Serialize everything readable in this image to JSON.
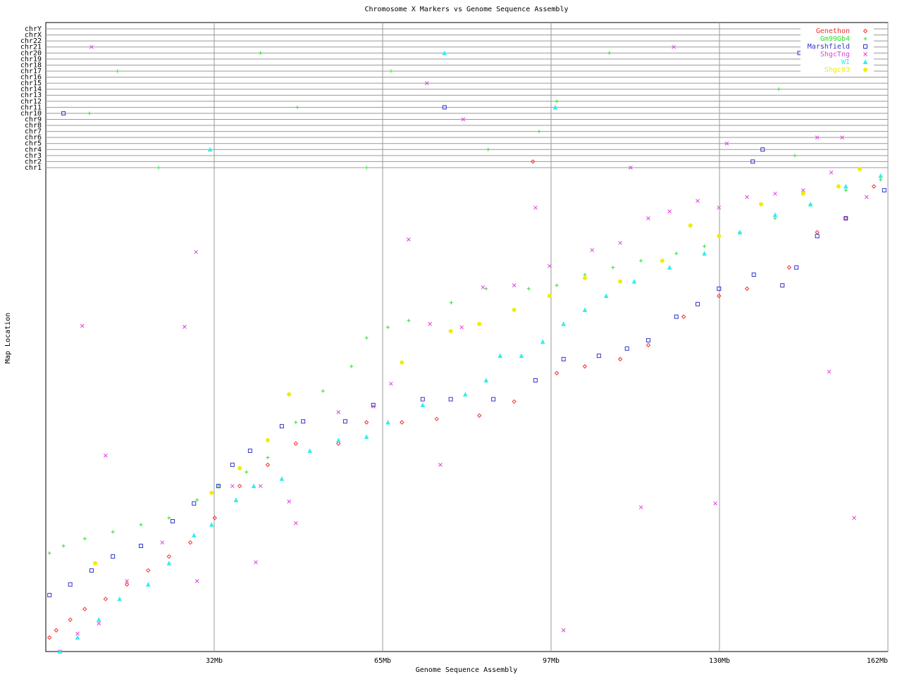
{
  "chart_data": {
    "type": "scatter",
    "title": "Chromosome X Markers vs Genome Sequence Assembly",
    "x_label": "Genome Sequence Assembly",
    "y_label": "Map Location",
    "xlim": [
      0,
      162
    ],
    "ylim": [
      0,
      100
    ],
    "xticks": [
      {
        "value": 32.4,
        "label": "32Mb"
      },
      {
        "value": 64.8,
        "label": "65Mb"
      },
      {
        "value": 97.2,
        "label": "97Mb"
      },
      {
        "value": 129.6,
        "label": "130Mb"
      },
      {
        "value": 162,
        "label": "162Mb"
      }
    ],
    "y_categories": [
      "chr1",
      "chr2",
      "chr3",
      "chr4",
      "chr5",
      "chr6",
      "chr7",
      "chr8",
      "chr9",
      "chr10",
      "chr11",
      "chr12",
      "chr13",
      "chr14",
      "chr15",
      "chr16",
      "chr17",
      "chr18",
      "chr19",
      "chr20",
      "chr21",
      "chr22",
      "chrX",
      "chrY"
    ],
    "grid": true,
    "legend": "top-right",
    "series": [
      {
        "name": "Genethon",
        "color": "#ee3333",
        "marker": "diamond",
        "x": [
          0.7,
          2.0,
          4.7,
          7.5,
          11.5,
          15.6,
          19.7,
          23.7,
          27.8,
          32.5,
          37.3,
          42.7,
          48.1,
          56.3,
          61.7,
          68.5,
          75.2,
          83.4,
          90.1,
          98.3,
          103.7,
          110.5,
          115.9,
          122.7,
          129.5,
          134.9,
          143.0,
          148.4,
          153.9,
          159.3
        ],
        "y": [
          2.9,
          4.4,
          6.6,
          8.8,
          10.9,
          13.9,
          16.8,
          19.7,
          22.6,
          27.7,
          34.3,
          38.7,
          43.1,
          43.1,
          47.5,
          47.5,
          48.2,
          48.9,
          51.8,
          57.7,
          59.1,
          60.6,
          63.5,
          69.4,
          73.7,
          75.2,
          79.6,
          86.9,
          89.8,
          96.4
        ],
        "chr_x": [
          93.7
        ],
        "chr": [
          "chr2"
        ]
      },
      {
        "name": "Gm99Gb4",
        "color": "#33dd33",
        "marker": "plus",
        "x": [
          0.7,
          3.4,
          7.5,
          12.9,
          18.3,
          23.7,
          29.1,
          33.2,
          38.6,
          42.7,
          48.1,
          53.3,
          58.8,
          61.7,
          65.8,
          69.8,
          78.0,
          84.7,
          92.9,
          98.3,
          103.7,
          109.1,
          114.5,
          121.3,
          126.7,
          133.5,
          140.3,
          147.1,
          153.9,
          160.6
        ],
        "y": [
          20.4,
          21.9,
          23.4,
          24.8,
          26.3,
          27.7,
          31.4,
          34.3,
          37.2,
          40.2,
          47.5,
          54.0,
          59.1,
          65.0,
          67.2,
          68.6,
          72.3,
          75.2,
          75.2,
          75.9,
          78.1,
          79.6,
          81.0,
          82.5,
          84.0,
          86.9,
          89.8,
          92.7,
          95.6,
          97.8
        ],
        "chr_x": [
          41.3,
          13.8,
          66.4,
          48.4,
          8.4,
          85.1,
          94.9,
          21.7,
          61.7,
          108.4,
          141.0,
          144.1,
          98.3
        ],
        "chr": [
          "chr20",
          "chr17",
          "chr17",
          "chr11",
          "chr10",
          "chr4",
          "chr7",
          "chr1",
          "chr1",
          "chr20",
          "chr14",
          "chr3",
          "chr12"
        ]
      },
      {
        "name": "Marshfield",
        "color": "#3333cc",
        "marker": "square",
        "x": [
          0.7,
          4.7,
          8.8,
          12.9,
          18.3,
          24.4,
          28.5,
          33.2,
          35.9,
          39.3,
          45.4,
          49.5,
          57.6,
          63.0,
          72.5,
          77.9,
          86.1,
          94.2,
          99.6,
          106.4,
          111.8,
          115.9,
          121.3,
          125.4,
          129.5,
          136.2,
          141.7,
          144.4,
          148.4,
          153.9,
          161.3
        ],
        "y": [
          11.7,
          13.9,
          16.8,
          19.7,
          21.9,
          27.0,
          30.7,
          34.3,
          38.7,
          41.6,
          46.7,
          47.7,
          47.7,
          51.1,
          52.3,
          52.3,
          52.3,
          56.2,
          60.6,
          61.3,
          62.8,
          64.5,
          69.4,
          72.0,
          75.2,
          78.1,
          75.9,
          79.6,
          86.1,
          89.8,
          95.6
        ],
        "chr_x": [
          3.4,
          76.7,
          136.0,
          137.9,
          145.0
        ],
        "chr": [
          "chr10",
          "chr11",
          "chr2",
          "chr4",
          "chr20"
        ]
      },
      {
        "name": "ShgcTng",
        "color": "#dd44dd",
        "marker": "x",
        "x": [
          2.7,
          6.1,
          10.2,
          15.6,
          22.4,
          29.1,
          35.9,
          41.3,
          46.8,
          56.3,
          63.0,
          66.4,
          73.9,
          80.0,
          84.1,
          90.1,
          96.9,
          105.1,
          110.5,
          115.9,
          120.0,
          125.4,
          129.5,
          134.9,
          140.3,
          145.7,
          151.1,
          157.9,
          7.0,
          28.9,
          11.5,
          26.7,
          75.9,
          94.2,
          99.6,
          114.5,
          128.8,
          150.7,
          155.5,
          69.8,
          48.1,
          40.4
        ],
        "y": [
          0,
          3.7,
          5.8,
          14.6,
          22.6,
          14.6,
          34.3,
          34.3,
          31.1,
          49.6,
          50.8,
          55.5,
          67.9,
          67.2,
          75.5,
          75.9,
          79.9,
          83.2,
          84.7,
          89.8,
          91.2,
          93.4,
          92.0,
          94.2,
          94.9,
          95.6,
          99.3,
          94.2,
          67.5,
          82.8,
          40.6,
          67.3,
          38.7,
          92.0,
          4.4,
          29.9,
          30.7,
          58.0,
          27.7,
          85.4,
          26.6,
          18.5
        ],
        "chr_x": [
          8.8,
          73.3,
          80.3,
          120.8,
          131.0,
          148.4,
          153.2,
          112.5
        ],
        "chr": [
          "chr21",
          "chr15",
          "chr9",
          "chr21",
          "chr5",
          "chr6",
          "chr6",
          "chr1"
        ]
      },
      {
        "name": "WI",
        "color": "#33eeee",
        "marker": "triangle",
        "x": [
          2.7,
          6.1,
          10.2,
          14.2,
          19.7,
          23.7,
          28.5,
          31.9,
          36.6,
          40.0,
          45.4,
          50.8,
          56.3,
          61.7,
          65.8,
          72.5,
          80.7,
          84.7,
          87.4,
          91.5,
          95.6,
          99.6,
          103.7,
          107.8,
          113.2,
          120.0,
          126.7,
          133.5,
          140.3,
          147.1,
          153.9,
          160.6
        ],
        "y": [
          0,
          2.9,
          6.6,
          10.9,
          13.9,
          18.3,
          24.1,
          26.3,
          31.4,
          34.3,
          35.8,
          41.6,
          43.8,
          44.5,
          47.5,
          51.1,
          53.3,
          56.2,
          61.3,
          61.3,
          64.2,
          67.9,
          70.8,
          73.7,
          76.7,
          79.6,
          82.5,
          86.9,
          90.5,
          92.7,
          96.4,
          98.6
        ],
        "chr_x": [
          31.6,
          76.7,
          98.0
        ],
        "chr": [
          "chr4",
          "chr20",
          "chr11"
        ]
      },
      {
        "name": "Shgc03",
        "color": "#eeee00",
        "marker": "circle",
        "x": [
          9.5,
          31.9,
          37.3,
          42.7,
          46.8,
          68.5,
          77.9,
          83.4,
          90.1,
          96.9,
          103.7,
          110.5,
          118.6,
          124.0,
          129.5,
          137.6,
          145.7,
          152.5,
          156.6
        ],
        "y": [
          18.3,
          32.9,
          38.0,
          43.8,
          53.3,
          59.9,
          66.4,
          67.9,
          70.8,
          73.7,
          77.4,
          76.7,
          81.0,
          88.3,
          86.1,
          92.7,
          94.9,
          96.4,
          100.0
        ],
        "chr_x": [],
        "chr": []
      }
    ]
  }
}
